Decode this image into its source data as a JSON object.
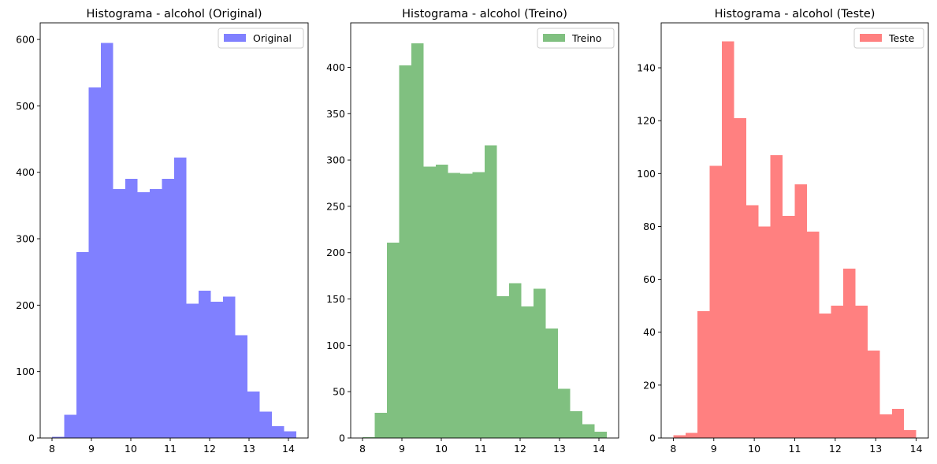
{
  "chart_data": [
    {
      "type": "bar",
      "title": "Histograma - alcohol (Original)",
      "legend": {
        "label": "Original",
        "placement": "upper right"
      },
      "color": "#8080ff",
      "xlabel": "",
      "ylabel": "",
      "xlim": [
        7.7,
        14.5
      ],
      "ylim": [
        0,
        625
      ],
      "x_ticks": [
        8,
        9,
        10,
        11,
        12,
        13,
        14
      ],
      "y_ticks": [
        0,
        100,
        200,
        300,
        400,
        500,
        600
      ],
      "bin_edges": [
        8.0,
        8.31,
        8.62,
        8.93,
        9.24,
        9.55,
        9.86,
        10.17,
        10.48,
        10.79,
        11.1,
        11.41,
        11.72,
        12.03,
        12.34,
        12.65,
        12.96,
        13.27,
        13.58,
        13.89,
        14.2
      ],
      "values": [
        2,
        35,
        280,
        528,
        595,
        375,
        390,
        370,
        375,
        390,
        422,
        202,
        222,
        205,
        213,
        155,
        70,
        40,
        18,
        10
      ]
    },
    {
      "type": "bar",
      "title": "Histograma - alcohol (Treino)",
      "legend": {
        "label": "Treino",
        "placement": "upper right"
      },
      "color": "#80c080",
      "xlabel": "",
      "ylabel": "",
      "xlim": [
        7.7,
        14.5
      ],
      "ylim": [
        0,
        448
      ],
      "x_ticks": [
        8,
        9,
        10,
        11,
        12,
        13,
        14
      ],
      "y_ticks": [
        0,
        50,
        100,
        150,
        200,
        250,
        300,
        350,
        400
      ],
      "bin_edges": [
        8.0,
        8.31,
        8.62,
        8.93,
        9.24,
        9.55,
        9.86,
        10.17,
        10.48,
        10.79,
        11.1,
        11.41,
        11.72,
        12.03,
        12.34,
        12.65,
        12.96,
        13.27,
        13.58,
        13.89,
        14.2
      ],
      "values": [
        1,
        27,
        211,
        402,
        426,
        293,
        295,
        286,
        285,
        287,
        316,
        153,
        167,
        142,
        161,
        118,
        53,
        29,
        15,
        7
      ]
    },
    {
      "type": "bar",
      "title": "Histograma - alcohol (Teste)",
      "legend": {
        "label": "Teste",
        "placement": "upper right"
      },
      "color": "#ff8080",
      "xlabel": "",
      "ylabel": "",
      "xlim": [
        7.7,
        14.3
      ],
      "ylim": [
        0,
        157
      ],
      "x_ticks": [
        8,
        9,
        10,
        11,
        12,
        13,
        14
      ],
      "y_ticks": [
        0,
        20,
        40,
        60,
        80,
        100,
        120,
        140
      ],
      "bin_edges": [
        8.0,
        8.3,
        8.6,
        8.9,
        9.2,
        9.5,
        9.8,
        10.1,
        10.4,
        10.7,
        11.0,
        11.3,
        11.6,
        11.9,
        12.2,
        12.5,
        12.8,
        13.1,
        13.4,
        13.7,
        14.0
      ],
      "values": [
        1,
        2,
        48,
        103,
        150,
        121,
        88,
        80,
        107,
        84,
        96,
        78,
        47,
        50,
        64,
        50,
        33,
        9,
        11,
        3
      ]
    }
  ]
}
